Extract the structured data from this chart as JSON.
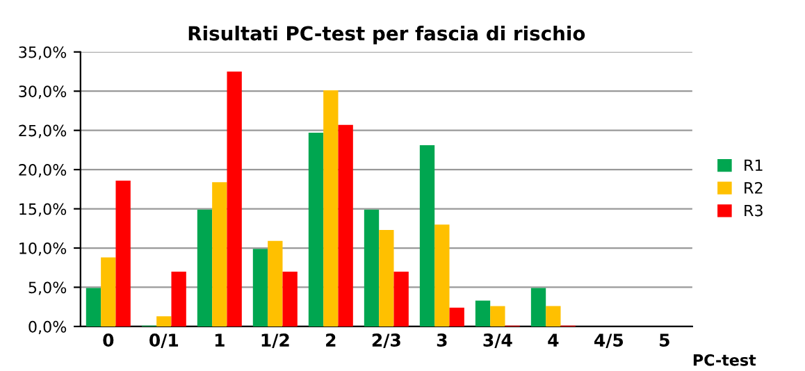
{
  "chart_data": {
    "type": "bar",
    "title": "Risultati PC-test per fascia di rischio",
    "xlabel": "PC-test",
    "categories": [
      "0",
      "0/1",
      "1",
      "1/2",
      "2",
      "2/3",
      "3",
      "3/4",
      "4",
      "4/5",
      "5"
    ],
    "series": [
      {
        "name": "R1",
        "color": "#00a650",
        "values": [
          4.9,
          0.1,
          14.9,
          9.9,
          24.7,
          14.9,
          23.1,
          3.3,
          4.9,
          0,
          0
        ]
      },
      {
        "name": "R2",
        "color": "#ffc000",
        "values": [
          8.8,
          1.3,
          18.4,
          10.9,
          30.1,
          12.3,
          13.0,
          2.6,
          2.6,
          0,
          0
        ]
      },
      {
        "name": "R3",
        "color": "#ff0000",
        "values": [
          18.6,
          7.0,
          32.5,
          7.0,
          25.7,
          7.0,
          2.4,
          0.1,
          0.1,
          0,
          0
        ]
      }
    ],
    "ylim": [
      0,
      35
    ],
    "yticks": [
      {
        "value": 0,
        "label": "0,0%"
      },
      {
        "value": 5,
        "label": "5,0%"
      },
      {
        "value": 10,
        "label": "10,0%"
      },
      {
        "value": 15,
        "label": "15,0%"
      },
      {
        "value": 20,
        "label": "20,0%"
      },
      {
        "value": 25,
        "label": "25,0%"
      },
      {
        "value": 30,
        "label": "30,0%"
      },
      {
        "value": 35,
        "label": "35,0%"
      }
    ],
    "grid": "y",
    "legend": "right"
  }
}
